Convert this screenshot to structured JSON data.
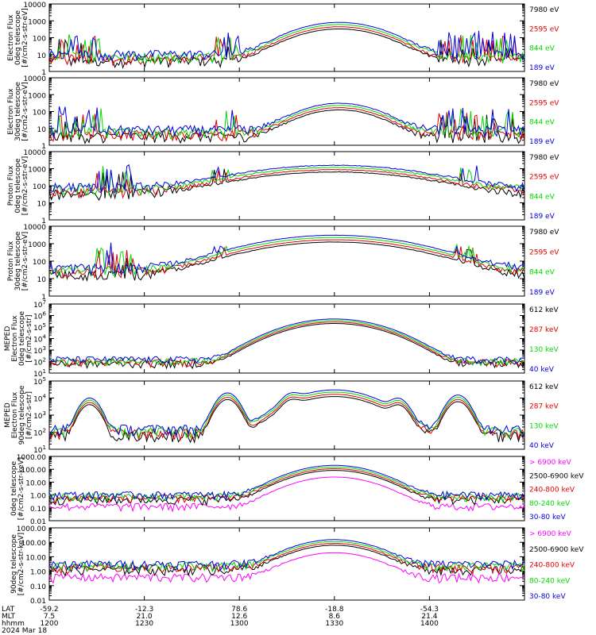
{
  "colors": {
    "black": "#000000",
    "red": "#e00000",
    "green": "#00d800",
    "blue": "#0000e0",
    "magenta": "#ff00ff"
  },
  "chart_data": [
    {
      "type": "line",
      "ylabel": [
        "Electron Flux",
        "0deg telescope",
        "[#/cm2-s-str-eV]"
      ],
      "yscale": "log",
      "ylim": [
        1,
        10000
      ],
      "yticks": [
        "1",
        "10",
        "100",
        "1000",
        "10000"
      ],
      "legend": [
        {
          "name": "7980 eV",
          "color": "black"
        },
        {
          "name": "2595 eV",
          "color": "red"
        },
        {
          "name": "844 eV",
          "color": "green"
        },
        {
          "name": "189 eV",
          "color": "blue"
        }
      ],
      "features": {
        "background": 10,
        "spikes": [
          [
            0.02,
            0.11
          ],
          [
            0.35,
            0.4
          ],
          [
            0.82,
            0.98
          ]
        ],
        "bump": {
          "center": 0.61,
          "width": 0.09,
          "peak": 800
        }
      }
    },
    {
      "type": "line",
      "ylabel": [
        "Electron Flux",
        "30deg telescope",
        "[#/cm2-s-str-eV]"
      ],
      "yscale": "log",
      "ylim": [
        1,
        10000
      ],
      "yticks": [
        "1",
        "10",
        "100",
        "1000",
        "10000"
      ],
      "legend": [
        {
          "name": "7980 eV",
          "color": "black"
        },
        {
          "name": "2595 eV",
          "color": "red"
        },
        {
          "name": "844 eV",
          "color": "green"
        },
        {
          "name": "189 eV",
          "color": "blue"
        }
      ],
      "features": {
        "background": 8,
        "spikes": [
          [
            0.02,
            0.11
          ],
          [
            0.35,
            0.4
          ],
          [
            0.82,
            0.98
          ]
        ],
        "bump": {
          "center": 0.61,
          "width": 0.08,
          "peak": 300
        }
      }
    },
    {
      "type": "line",
      "ylabel": [
        "Proton Flux",
        "0deg telescope",
        "[#/cm2-s-str-eV]"
      ],
      "yscale": "log",
      "ylim": [
        1,
        10000
      ],
      "yticks": [
        "1",
        "10",
        "100",
        "1000",
        "10000"
      ],
      "legend": [
        {
          "name": "7980 eV",
          "color": "black"
        },
        {
          "name": "2595 eV",
          "color": "red"
        },
        {
          "name": "844 eV",
          "color": "green"
        },
        {
          "name": "189 eV",
          "color": "blue"
        }
      ],
      "features": {
        "background": 80,
        "spikes": [
          [
            0.1,
            0.18
          ],
          [
            0.34,
            0.38
          ],
          [
            0.85,
            0.9
          ]
        ],
        "bump": {
          "center": 0.6,
          "width": 0.18,
          "peak": 1500
        }
      }
    },
    {
      "type": "line",
      "ylabel": [
        "Proton Flux",
        "30deg telescope",
        "[#/cm2-s-str-eV]"
      ],
      "yscale": "log",
      "ylim": [
        1,
        10000
      ],
      "yticks": [
        "1",
        "10",
        "100",
        "1000",
        "10000"
      ],
      "legend": [
        {
          "name": "7980 eV",
          "color": "black"
        },
        {
          "name": "2595 eV",
          "color": "red"
        },
        {
          "name": "844 eV",
          "color": "green"
        },
        {
          "name": "189 eV",
          "color": "blue"
        }
      ],
      "features": {
        "background": 40,
        "spikes": [
          [
            0.1,
            0.18
          ],
          [
            0.34,
            0.38
          ],
          [
            0.85,
            0.9
          ]
        ],
        "bump": {
          "center": 0.6,
          "width": 0.16,
          "peak": 3000
        }
      }
    },
    {
      "type": "line",
      "ylabel": [
        "MEPED",
        "Electron Flux",
        "0deg telescope",
        "[#/cm2-s-str]"
      ],
      "yscale": "log",
      "ylim": [
        10,
        10000000
      ],
      "yticks": [
        "10^1",
        "10^2",
        "10^3",
        "10^4",
        "10^5",
        "10^6",
        "10^7"
      ],
      "legend": [
        {
          "name": "612 keV",
          "color": "black"
        },
        {
          "name": "287 keV",
          "color": "red"
        },
        {
          "name": "130 keV",
          "color": "green"
        },
        {
          "name": "40 keV",
          "color": "blue"
        }
      ],
      "features": {
        "background": 150,
        "bump": {
          "center": 0.6,
          "width": 0.085,
          "peak": 500000
        }
      }
    },
    {
      "type": "line",
      "ylabel": [
        "MEPED",
        "Electron Flux",
        "90deg telescope",
        "[#/cm2-s-str]"
      ],
      "yscale": "log",
      "ylim": [
        10,
        100000
      ],
      "yticks": [
        "10^1",
        "10^2",
        "10^3",
        "10^4",
        "10^5"
      ],
      "legend": [
        {
          "name": "612 keV",
          "color": "black"
        },
        {
          "name": "287 keV",
          "color": "red"
        },
        {
          "name": "130 keV",
          "color": "green"
        },
        {
          "name": "40 keV",
          "color": "blue"
        }
      ],
      "features": {
        "background": 150,
        "bumps": [
          [
            0.085,
            0.02,
            10000
          ],
          [
            0.375,
            0.022,
            20000
          ],
          [
            0.51,
            0.02,
            12000
          ],
          [
            0.6,
            0.08,
            30000
          ],
          [
            0.735,
            0.02,
            8000
          ],
          [
            0.86,
            0.022,
            15000
          ]
        ]
      }
    },
    {
      "type": "line",
      "ylabel": [
        "0deg telescope",
        "[#/cm2-s-str-keV]"
      ],
      "yscale": "log",
      "ylim": [
        0.01,
        1000
      ],
      "yticks": [
        "0.01",
        "0.10",
        "1.00",
        "10.00",
        "100.00",
        "1000.00"
      ],
      "legend": [
        {
          "name": "> 6900 keV",
          "color": "magenta"
        },
        {
          "name": "2500-6900 keV",
          "color": "black"
        },
        {
          "name": "240-800 keV",
          "color": "red"
        },
        {
          "name": "80-240 keV",
          "color": "green"
        },
        {
          "name": "30-80 keV",
          "color": "blue"
        }
      ],
      "features": {
        "background": 1,
        "bump": {
          "center": 0.6,
          "width": 0.08,
          "peak": 200
        }
      }
    },
    {
      "type": "line",
      "ylabel": [
        "90deg telescope",
        "[#/cm2-s-str-keV]"
      ],
      "yscale": "log",
      "ylim": [
        0.01,
        1000
      ],
      "yticks": [
        "0.01",
        "0.10",
        "1.00",
        "10.00",
        "100.00",
        "1000.00"
      ],
      "legend": [
        {
          "name": "> 6900 keV",
          "color": "magenta"
        },
        {
          "name": "2500-6900 keV",
          "color": "black"
        },
        {
          "name": "240-800 keV",
          "color": "red"
        },
        {
          "name": "80-240 keV",
          "color": "green"
        },
        {
          "name": "30-80 keV",
          "color": "blue"
        }
      ],
      "features": {
        "background": 3,
        "bump": {
          "center": 0.6,
          "width": 0.08,
          "peak": 150
        }
      }
    }
  ],
  "xaxis": {
    "row_labels": [
      "LAT",
      "MLT",
      "hhmm",
      "2024 Mar 18"
    ],
    "ticks": [
      {
        "frac": 0.0,
        "lat": "-59.2",
        "mlt": "7.5",
        "hhmm": "1200"
      },
      {
        "frac": 0.2,
        "lat": "-12.3",
        "mlt": "21.0",
        "hhmm": "1230"
      },
      {
        "frac": 0.4,
        "lat": "78.6",
        "mlt": "12.6",
        "hhmm": "1300"
      },
      {
        "frac": 0.6,
        "lat": "-18.8",
        "mlt": "8.6",
        "hhmm": "1330"
      },
      {
        "frac": 0.8,
        "lat": "-54.3",
        "mlt": "21.4",
        "hhmm": "1400"
      }
    ]
  }
}
